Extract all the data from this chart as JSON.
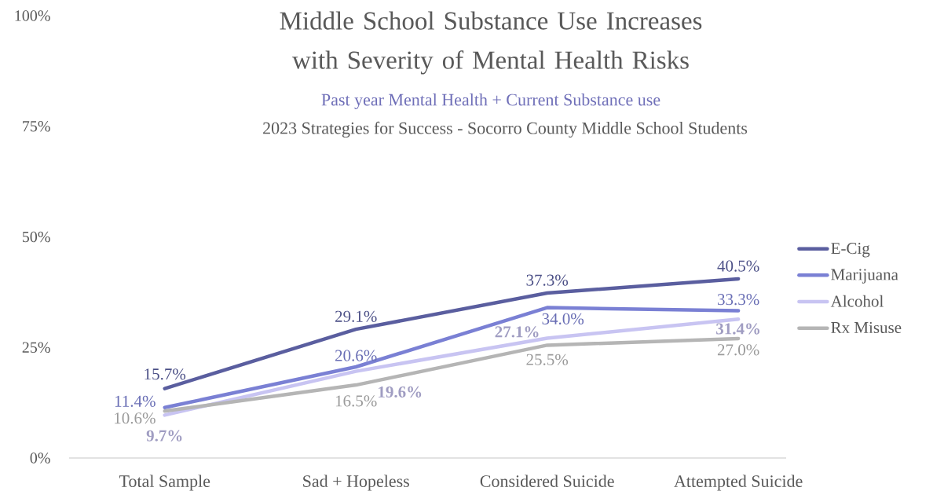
{
  "chart_data": {
    "type": "line",
    "title": "Middle School Substance Use Increases with Severity of Mental Health Risks",
    "subtitle": "Past year Mental Health + Current Substance use",
    "annotations": [
      "2023 Strategies for Success - Socorro County Middle School Students"
    ],
    "categories": [
      "Total Sample",
      "Sad + Hopeless",
      "Considered Suicide",
      "Attempted Suicide"
    ],
    "series": [
      {
        "name": "E-Cig",
        "color": "#5a5e9f",
        "values": [
          15.7,
          29.1,
          37.3,
          40.5
        ],
        "value_labels": [
          "15.7%",
          "29.1%",
          "37.3%",
          "40.5%"
        ]
      },
      {
        "name": "Marijuana",
        "color": "#7a80d4",
        "values": [
          11.4,
          20.6,
          34.0,
          33.3
        ],
        "value_labels": [
          "11.4%",
          "20.6%",
          "34.0%",
          "33.3%"
        ]
      },
      {
        "name": "Alcohol",
        "color": "#c8c4f2",
        "values": [
          9.7,
          19.6,
          27.1,
          31.4
        ],
        "value_labels": [
          "9.7%",
          "19.6%",
          "27.1%",
          "31.4%"
        ]
      },
      {
        "name": "Rx Misuse",
        "color": "#b5b5b5",
        "values": [
          10.6,
          16.5,
          25.5,
          27.0
        ],
        "value_labels": [
          "10.6%",
          "16.5%",
          "25.5%",
          "27.0%"
        ]
      }
    ],
    "ylim": [
      0,
      100
    ],
    "yticks": [
      {
        "value": 0,
        "label": "0%"
      },
      {
        "value": 25,
        "label": "25%"
      },
      {
        "value": 50,
        "label": "50%"
      },
      {
        "value": 75,
        "label": "75%"
      },
      {
        "value": 100,
        "label": "100%"
      }
    ],
    "legend": "right",
    "marker": "none"
  }
}
